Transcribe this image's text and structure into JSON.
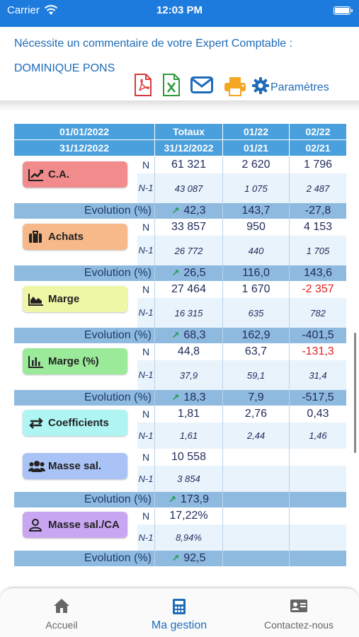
{
  "status_bar": {
    "carrier": "Carrier",
    "time": "12:03 PM"
  },
  "header": {
    "line1": "Nécessite un commentaire de votre Expert Comptable :",
    "line2": "DOMINIQUE PONS",
    "toolbar": {
      "pdf": "pdf-icon",
      "excel": "excel-icon",
      "mail": "mail-icon",
      "print": "printer-icon",
      "params_label": "Paramètres"
    }
  },
  "table": {
    "columns": [
      {
        "top": "01/01/2022",
        "bottom": "31/12/2022"
      },
      {
        "top": "Totaux",
        "bottom": "31/12/2022"
      },
      {
        "top": "01/22",
        "bottom": "01/21"
      },
      {
        "top": "02/22",
        "bottom": "02/21"
      }
    ],
    "n_label": "N",
    "n1_label": "N-1",
    "evo_label": "Evolution (%)",
    "rows": [
      {
        "name": "C.A.",
        "icon": "line-chart-icon",
        "color": "#f28b8b",
        "n": [
          "61 321",
          "2 620",
          "1 796"
        ],
        "n1": [
          "43 087",
          "1 075",
          "2 487"
        ],
        "evo": [
          "42,3",
          "143,7",
          "-27,8"
        ]
      },
      {
        "name": "Achats",
        "icon": "briefcase-icon",
        "color": "#f7b88a",
        "n": [
          "33 857",
          "950",
          "4 153"
        ],
        "n1": [
          "26 772",
          "440",
          "1 705"
        ],
        "evo": [
          "26,5",
          "116,0",
          "143,6"
        ]
      },
      {
        "name": "Marge",
        "icon": "area-chart-icon",
        "color": "#eef7a6",
        "n": [
          "27 464",
          "1 670",
          "-2 357"
        ],
        "n1": [
          "16 315",
          "635",
          "782"
        ],
        "evo": [
          "68,3",
          "162,9",
          "-401,5"
        ]
      },
      {
        "name": "Marge (%)",
        "icon": "bar-chart-icon",
        "color": "#9aea9a",
        "n": [
          "44,8",
          "63,7",
          "-131,3"
        ],
        "n1": [
          "37,9",
          "59,1",
          "31,4"
        ],
        "evo": [
          "18,3",
          "7,9",
          "-517,5"
        ]
      },
      {
        "name": "Coefficients",
        "icon": "exchange-icon",
        "color": "#aef5f3",
        "n": [
          "1,81",
          "2,76",
          "0,43"
        ],
        "n1": [
          "1,61",
          "2,44",
          "1,46"
        ],
        "evo": null
      },
      {
        "name": "Masse sal.",
        "icon": "users-icon",
        "color": "#a9c3f7",
        "n": [
          "10 558",
          "",
          ""
        ],
        "n1": [
          "3 854",
          "",
          ""
        ],
        "evo": [
          "173,9",
          "",
          ""
        ]
      },
      {
        "name": "Masse sal./CA",
        "icon": "user-icon",
        "color": "#c8a6f2",
        "n": [
          "17,22%",
          "",
          ""
        ],
        "n1": [
          "8,94%",
          "",
          ""
        ],
        "evo": [
          "92,5",
          "",
          ""
        ]
      }
    ]
  },
  "tabbar": {
    "items": [
      {
        "label": "Accueil",
        "icon": "home-icon"
      },
      {
        "label": "Ma gestion",
        "icon": "calculator-icon"
      },
      {
        "label": "Contactez-nous",
        "icon": "contact-card-icon"
      }
    ],
    "active": "Ma gestion"
  },
  "colors": {
    "accent": "#1e6bb8",
    "status": "#1c7bdc",
    "header_cell": "#4a9fdd",
    "evo_row": "#8fbadf",
    "negative": "#e02020",
    "up_arrow": "#1d9a4a"
  }
}
